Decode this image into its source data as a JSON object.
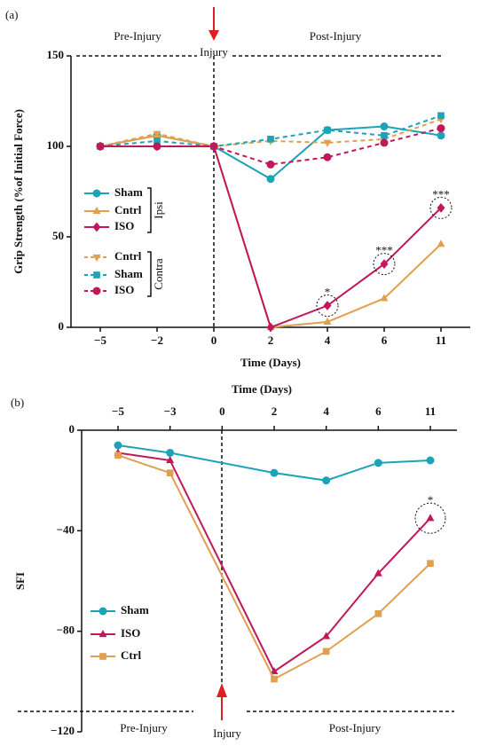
{
  "chart_data": [
    {
      "type": "line",
      "panel_label": "(a)",
      "pre_label": "Pre-Injury",
      "injury_label": "Injury",
      "post_label": "Post-Injury",
      "ylabel": "Grip Strength (%of Initial Force)",
      "xlabel": "Time (Days)",
      "categories": [
        "−5",
        "−2",
        "0",
        "2",
        "4",
        "6",
        "11"
      ],
      "ylim": [
        0,
        150
      ],
      "yticks": [
        0,
        50,
        100,
        150
      ],
      "series": [
        {
          "name": "Sham",
          "group": "Ipsi",
          "color": "#1ba3b8",
          "dash": false,
          "marker": "circle",
          "values": [
            100,
            106,
            100,
            82,
            109,
            111,
            106
          ]
        },
        {
          "name": "Cntrl",
          "group": "Ipsi",
          "color": "#e0a050",
          "dash": false,
          "marker": "triangle",
          "values": [
            100,
            106,
            100,
            0,
            3,
            16,
            46
          ]
        },
        {
          "name": "ISO",
          "group": "Ipsi",
          "color": "#c0185a",
          "dash": false,
          "marker": "diamond",
          "values": [
            100,
            100,
            100,
            0,
            12,
            35,
            66
          ],
          "annotations": [
            {
              "x": "4",
              "text": "*"
            },
            {
              "x": "6",
              "text": "***"
            },
            {
              "x": "11",
              "text": "***"
            }
          ]
        },
        {
          "name": "Cntrl",
          "group": "Contra",
          "color": "#e0a050",
          "dash": true,
          "marker": "downtriangle",
          "values": [
            100,
            107,
            100,
            103,
            102,
            104,
            115
          ]
        },
        {
          "name": "Sham",
          "group": "Contra",
          "color": "#1ba3b8",
          "dash": true,
          "marker": "square",
          "values": [
            100,
            103,
            100,
            104,
            109,
            106,
            117
          ]
        },
        {
          "name": "ISO",
          "group": "Contra",
          "color": "#c0185a",
          "dash": true,
          "marker": "circle",
          "values": [
            100,
            100,
            100,
            90,
            94,
            102,
            110
          ]
        }
      ]
    },
    {
      "type": "line",
      "panel_label": "(b)",
      "pre_label": "Pre-Injury",
      "injury_label": "Injury",
      "post_label": "Post-Injury",
      "ylabel": "SFI",
      "xlabel": "Time (Days)",
      "categories": [
        "−5",
        "−3",
        "0",
        "2",
        "4",
        "6",
        "11"
      ],
      "ylim": [
        -120,
        0
      ],
      "yticks": [
        {
          "value": -120,
          "label": "−120"
        },
        {
          "value": -80,
          "label": "−80"
        },
        {
          "value": -40,
          "label": "−40"
        },
        0
      ],
      "series": [
        {
          "name": "Sham",
          "color": "#1ba3b8",
          "dash": false,
          "marker": "circle",
          "x": [
            "−5",
            "−3",
            "2",
            "4",
            "6",
            "11"
          ],
          "values": [
            -6,
            -9,
            -17,
            -20,
            -13,
            -12
          ]
        },
        {
          "name": "ISO",
          "color": "#c0185a",
          "dash": false,
          "marker": "triangle",
          "x": [
            "−5",
            "−3",
            "2",
            "4",
            "6",
            "11"
          ],
          "values": [
            -9,
            -12,
            -96,
            -82,
            -57,
            -35
          ],
          "annotations": [
            {
              "x": "11",
              "text": "*"
            }
          ]
        },
        {
          "name": "Ctrl",
          "color": "#e0a050",
          "dash": false,
          "marker": "square",
          "x": [
            "−5",
            "−3",
            "2",
            "4",
            "6",
            "11"
          ],
          "values": [
            -10,
            -17,
            -99,
            -88,
            -73,
            -53
          ]
        }
      ]
    }
  ]
}
